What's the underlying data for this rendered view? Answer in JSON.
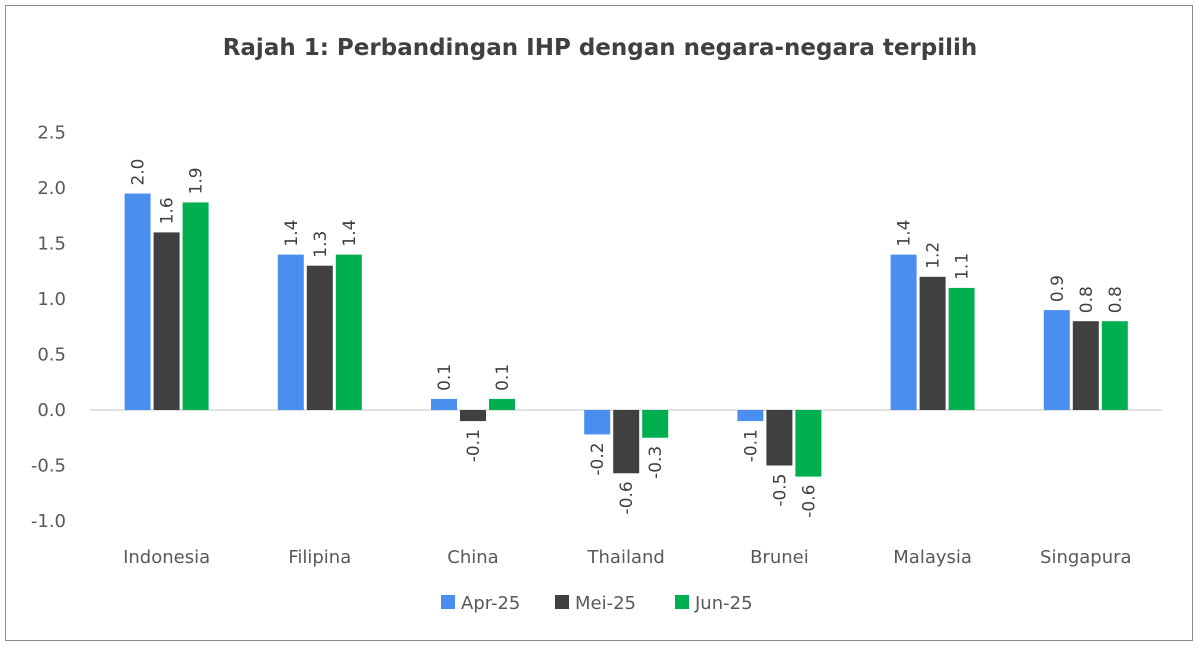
{
  "chart_data": {
    "type": "bar",
    "title": "Rajah 1: Perbandingan IHP dengan negara-negara terpilih",
    "xlabel": "",
    "ylabel": "",
    "ylim": [
      -1.0,
      2.5
    ],
    "yticks": [
      "2.5",
      "2.0",
      "1.5",
      "1.0",
      "0.5",
      "0.0",
      "-0.5",
      "-1.0"
    ],
    "ytick_values": [
      2.5,
      2.0,
      1.5,
      1.0,
      0.5,
      0.0,
      -0.5,
      -1.0
    ],
    "categories": [
      "Indonesia",
      "Filipina",
      "China",
      "Thailand",
      "Brunei",
      "Malaysia",
      "Singapura"
    ],
    "legend_position": "bottom",
    "grid": false,
    "series": [
      {
        "name": "Apr-25",
        "color": "#4a8ef0",
        "values": [
          1.95,
          1.4,
          0.1,
          -0.22,
          -0.1,
          1.4,
          0.9
        ],
        "labels": [
          "2.0",
          "1.4",
          "0.1",
          "-0.2",
          "-0.1",
          "1.4",
          "0.9"
        ]
      },
      {
        "name": "Mei-25",
        "color": "#404040",
        "values": [
          1.6,
          1.3,
          -0.1,
          -0.57,
          -0.5,
          1.2,
          0.8
        ],
        "labels": [
          "1.6",
          "1.3",
          "-0.1",
          "-0.6",
          "-0.5",
          "1.2",
          "0.8"
        ]
      },
      {
        "name": "Jun-25",
        "color": "#00b050",
        "values": [
          1.87,
          1.4,
          0.1,
          -0.25,
          -0.6,
          1.1,
          0.8
        ],
        "labels": [
          "1.9",
          "1.4",
          "0.1",
          "-0.3",
          "-0.6",
          "1.1",
          "0.8"
        ]
      }
    ]
  }
}
